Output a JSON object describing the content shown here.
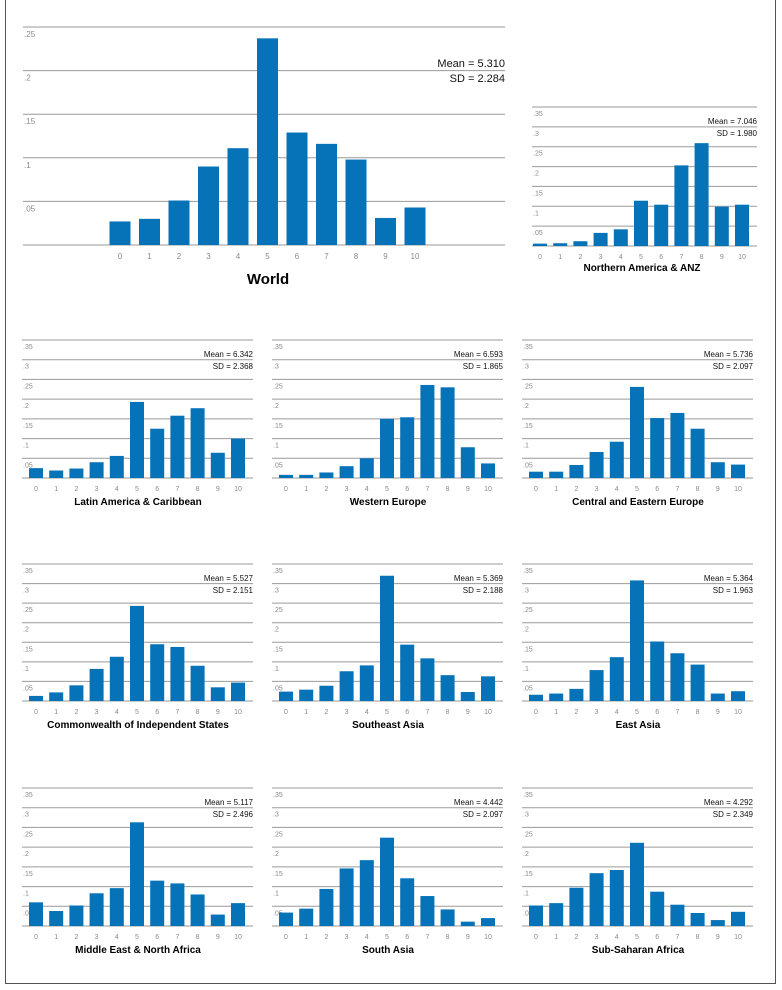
{
  "chart_data": [
    {
      "type": "bar",
      "title": "World",
      "categories": [
        "0",
        "1",
        "2",
        "3",
        "4",
        "5",
        "6",
        "7",
        "8",
        "9",
        "10"
      ],
      "values": [
        0.027,
        0.03,
        0.051,
        0.09,
        0.111,
        0.237,
        0.129,
        0.116,
        0.098,
        0.031,
        0.043
      ],
      "mean_label": "Mean = 5.310",
      "sd_label": "SD = 2.284",
      "ylim": [
        0,
        0.25
      ],
      "yticks": [
        ".05",
        ".1",
        ".15",
        ".2",
        ".25"
      ],
      "grid": true,
      "color": "#0673b9"
    },
    {
      "type": "bar",
      "title": "Northern America & ANZ",
      "categories": [
        "0",
        "1",
        "2",
        "3",
        "4",
        "5",
        "6",
        "7",
        "8",
        "9",
        "10"
      ],
      "values": [
        0.006,
        0.007,
        0.012,
        0.033,
        0.042,
        0.114,
        0.104,
        0.203,
        0.259,
        0.099,
        0.104
      ],
      "mean_label": "Mean = 7.046",
      "sd_label": "SD = 1.980",
      "ylim": [
        0,
        0.35
      ],
      "yticks": [
        ".05",
        ".1",
        ".15",
        ".2",
        ".25",
        ".3",
        ".35"
      ],
      "grid": true,
      "color": "#0673b9"
    },
    {
      "type": "bar",
      "title": "Latin America & Caribbean",
      "categories": [
        "0",
        "1",
        "2",
        "3",
        "4",
        "5",
        "6",
        "7",
        "8",
        "9",
        "10"
      ],
      "values": [
        0.025,
        0.019,
        0.024,
        0.04,
        0.056,
        0.193,
        0.125,
        0.158,
        0.177,
        0.064,
        0.1
      ],
      "mean_label": "Mean = 6.342",
      "sd_label": "SD = 2.368",
      "ylim": [
        0,
        0.35
      ],
      "yticks": [
        ".05",
        ".1",
        ".15",
        ".2",
        ".25",
        ".3",
        ".35"
      ],
      "grid": true,
      "color": "#0673b9"
    },
    {
      "type": "bar",
      "title": "Western Europe",
      "categories": [
        "0",
        "1",
        "2",
        "3",
        "4",
        "5",
        "6",
        "7",
        "8",
        "9",
        "10"
      ],
      "values": [
        0.008,
        0.008,
        0.014,
        0.03,
        0.05,
        0.15,
        0.154,
        0.236,
        0.23,
        0.078,
        0.037
      ],
      "mean_label": "Mean = 6.593",
      "sd_label": "SD = 1.865",
      "ylim": [
        0,
        0.35
      ],
      "yticks": [
        ".05",
        ".1",
        ".15",
        ".2",
        ".25",
        ".3",
        ".35"
      ],
      "grid": true,
      "color": "#0673b9"
    },
    {
      "type": "bar",
      "title": "Central and Eastern Europe",
      "categories": [
        "0",
        "1",
        "2",
        "3",
        "4",
        "5",
        "6",
        "7",
        "8",
        "9",
        "10"
      ],
      "values": [
        0.016,
        0.016,
        0.033,
        0.066,
        0.092,
        0.231,
        0.152,
        0.165,
        0.125,
        0.04,
        0.034
      ],
      "mean_label": "Mean = 5.736",
      "sd_label": "SD = 2.097",
      "ylim": [
        0,
        0.35
      ],
      "yticks": [
        ".05",
        ".1",
        ".15",
        ".2",
        ".25",
        ".3",
        ".35"
      ],
      "grid": true,
      "color": "#0673b9"
    },
    {
      "type": "bar",
      "title": "Commonwealth of Independent States",
      "categories": [
        "0",
        "1",
        "2",
        "3",
        "4",
        "5",
        "6",
        "7",
        "8",
        "9",
        "10"
      ],
      "values": [
        0.013,
        0.022,
        0.04,
        0.082,
        0.113,
        0.243,
        0.145,
        0.138,
        0.09,
        0.035,
        0.047
      ],
      "mean_label": "Mean = 5.527",
      "sd_label": "SD = 2.151",
      "ylim": [
        0,
        0.35
      ],
      "yticks": [
        ".05",
        ".1",
        ".15",
        ".2",
        ".25",
        ".3",
        ".35"
      ],
      "grid": true,
      "color": "#0673b9"
    },
    {
      "type": "bar",
      "title": "Southeast Asia",
      "categories": [
        "0",
        "1",
        "2",
        "3",
        "4",
        "5",
        "6",
        "7",
        "8",
        "9",
        "10"
      ],
      "values": [
        0.024,
        0.029,
        0.039,
        0.076,
        0.091,
        0.32,
        0.144,
        0.109,
        0.066,
        0.023,
        0.063
      ],
      "mean_label": "Mean = 5.369",
      "sd_label": "SD = 2.188",
      "ylim": [
        0,
        0.35
      ],
      "yticks": [
        ".05",
        ".1",
        ".15",
        ".2",
        ".25",
        ".3",
        ".35"
      ],
      "grid": true,
      "color": "#0673b9"
    },
    {
      "type": "bar",
      "title": "East Asia",
      "categories": [
        "0",
        "1",
        "2",
        "3",
        "4",
        "5",
        "6",
        "7",
        "8",
        "9",
        "10"
      ],
      "values": [
        0.016,
        0.019,
        0.031,
        0.079,
        0.112,
        0.308,
        0.152,
        0.122,
        0.093,
        0.019,
        0.025
      ],
      "mean_label": "Mean = 5.364",
      "sd_label": "SD = 1.963",
      "ylim": [
        0,
        0.35
      ],
      "yticks": [
        ".05",
        ".1",
        ".15",
        ".2",
        ".25",
        ".3",
        ".35"
      ],
      "grid": true,
      "color": "#0673b9"
    },
    {
      "type": "bar",
      "title": "Middle East & North Africa",
      "categories": [
        "0",
        "1",
        "2",
        "3",
        "4",
        "5",
        "6",
        "7",
        "8",
        "9",
        "10"
      ],
      "values": [
        0.06,
        0.038,
        0.052,
        0.083,
        0.096,
        0.263,
        0.115,
        0.108,
        0.08,
        0.029,
        0.058
      ],
      "mean_label": "Mean = 5.117",
      "sd_label": "SD = 2.496",
      "ylim": [
        0,
        0.35
      ],
      "yticks": [
        ".05",
        ".1",
        ".15",
        ".2",
        ".25",
        ".3",
        ".35"
      ],
      "grid": true,
      "color": "#0673b9"
    },
    {
      "type": "bar",
      "title": "South Asia",
      "categories": [
        "0",
        "1",
        "2",
        "3",
        "4",
        "5",
        "6",
        "7",
        "8",
        "9",
        "10"
      ],
      "values": [
        0.034,
        0.044,
        0.094,
        0.146,
        0.167,
        0.224,
        0.121,
        0.076,
        0.042,
        0.011,
        0.02
      ],
      "mean_label": "Mean = 4.442",
      "sd_label": "SD = 2.097",
      "ylim": [
        0,
        0.35
      ],
      "yticks": [
        ".05",
        ".1",
        ".15",
        ".2",
        ".25",
        ".3",
        ".35"
      ],
      "grid": true,
      "color": "#0673b9"
    },
    {
      "type": "bar",
      "title": "Sub-Saharan Africa",
      "categories": [
        "0",
        "1",
        "2",
        "3",
        "4",
        "5",
        "6",
        "7",
        "8",
        "9",
        "10"
      ],
      "values": [
        0.052,
        0.058,
        0.097,
        0.134,
        0.142,
        0.211,
        0.087,
        0.054,
        0.033,
        0.015,
        0.036
      ],
      "mean_label": "Mean = 4.292",
      "sd_label": "SD = 2.349",
      "ylim": [
        0,
        0.35
      ],
      "yticks": [
        ".05",
        ".1",
        ".15",
        ".2",
        ".25",
        ".3",
        ".35"
      ],
      "grid": true,
      "color": "#0673b9"
    }
  ]
}
